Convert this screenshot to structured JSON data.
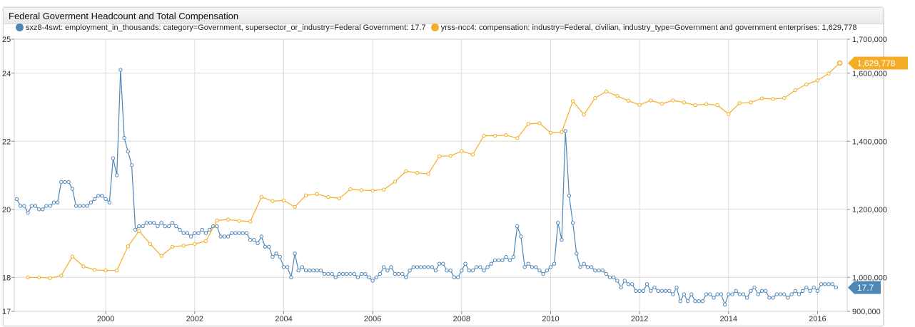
{
  "widget": {
    "title": "Federal Goverment Headcount and Total Compensation"
  },
  "chart_data": {
    "type": "line",
    "title": "Federal Goverment Headcount and Total Compensation",
    "x_ticks": [
      "2000",
      "2002",
      "2004",
      "2006",
      "2008",
      "2010",
      "2012",
      "2014",
      "2016"
    ],
    "y_left": {
      "range": [
        17,
        25
      ],
      "ticks": [
        "17",
        "18",
        "20",
        "22",
        "24",
        "25"
      ]
    },
    "y_right": {
      "range": [
        900000,
        1700000
      ],
      "ticks": [
        "900,000",
        "1,000,000",
        "1,200,000",
        "1,400,000",
        "1,600,000",
        "1,700,000"
      ]
    },
    "grid": true,
    "legend_position": "top-left",
    "series": [
      {
        "name": "sxz8-4swt: employment_in_thousands: category=Government, supersector_or_industry=Federal Government: 17.7",
        "axis": "left",
        "color": "#4e86b8",
        "last_label": "17.7",
        "frequency": "monthly",
        "start": "1998-01",
        "values": [
          20.3,
          20.1,
          20.1,
          19.9,
          20.1,
          20.1,
          20.0,
          20.0,
          20.1,
          20.1,
          20.2,
          20.2,
          20.8,
          20.8,
          20.8,
          20.6,
          20.1,
          20.1,
          20.1,
          20.1,
          20.2,
          20.3,
          20.4,
          20.4,
          20.3,
          20.2,
          21.5,
          21.0,
          24.1,
          22.1,
          21.7,
          21.3,
          19.4,
          19.5,
          19.5,
          19.6,
          19.6,
          19.6,
          19.5,
          19.6,
          19.5,
          19.5,
          19.6,
          19.5,
          19.4,
          19.3,
          19.3,
          19.2,
          19.3,
          19.3,
          19.4,
          19.3,
          19.4,
          19.5,
          19.5,
          19.2,
          19.2,
          19.2,
          19.3,
          19.3,
          19.3,
          19.3,
          19.3,
          19.1,
          19.1,
          19.0,
          19.2,
          18.9,
          18.9,
          18.6,
          18.7,
          18.6,
          18.3,
          18.3,
          18.0,
          18.7,
          18.2,
          18.3,
          18.2,
          18.2,
          18.2,
          18.2,
          18.2,
          18.1,
          18.1,
          18.1,
          18.0,
          18.1,
          18.1,
          18.1,
          18.1,
          18.1,
          18.0,
          18.1,
          18.1,
          18.0,
          17.9,
          18.0,
          18.1,
          18.3,
          18.2,
          18.3,
          18.1,
          18.1,
          18.1,
          18.0,
          18.2,
          18.3,
          18.3,
          18.3,
          18.3,
          18.3,
          18.3,
          18.2,
          18.4,
          18.4,
          18.2,
          18.2,
          18.0,
          18.0,
          18.2,
          18.4,
          18.2,
          18.2,
          18.3,
          18.3,
          18.2,
          18.3,
          18.4,
          18.5,
          18.5,
          18.5,
          18.6,
          18.5,
          18.6,
          19.5,
          19.2,
          18.3,
          18.4,
          18.3,
          18.3,
          18.2,
          18.1,
          18.2,
          18.3,
          18.4,
          19.6,
          19.1,
          22.3,
          20.4,
          19.6,
          18.7,
          18.3,
          18.4,
          18.3,
          18.3,
          18.2,
          18.2,
          18.2,
          18.1,
          18.0,
          18.0,
          17.9,
          17.7,
          17.9,
          17.8,
          17.8,
          17.6,
          17.6,
          17.6,
          17.8,
          17.6,
          17.7,
          17.6,
          17.6,
          17.6,
          17.6,
          17.5,
          17.7,
          17.3,
          17.5,
          17.3,
          17.5,
          17.3,
          17.3,
          17.3,
          17.5,
          17.5,
          17.4,
          17.5,
          17.5,
          17.2,
          17.5,
          17.5,
          17.6,
          17.5,
          17.5,
          17.4,
          17.6,
          17.7,
          17.5,
          17.6,
          17.6,
          17.4,
          17.4,
          17.5,
          17.5,
          17.5,
          17.4,
          17.5,
          17.6,
          17.5,
          17.6,
          17.7,
          17.6,
          17.7,
          17.6,
          17.8,
          17.8,
          17.8,
          17.8,
          17.7
        ]
      },
      {
        "name": "yrss-ncc4: compensation: industry=Federal, civilian, industry_type=Government and government enterprises: 1,629,778",
        "axis": "right",
        "color": "#f5ad25",
        "last_label": "1,629,778",
        "frequency": "quarterly",
        "start": "1998-Q2",
        "values": [
          1000000,
          1000000,
          998000,
          1005000,
          1061000,
          1032000,
          1022000,
          1020000,
          1020000,
          1091000,
          1136000,
          1098000,
          1063000,
          1090000,
          1093000,
          1098000,
          1106000,
          1167000,
          1170000,
          1166000,
          1164000,
          1236000,
          1224000,
          1226000,
          1207000,
          1241000,
          1245000,
          1236000,
          1232000,
          1259000,
          1256000,
          1255000,
          1258000,
          1281000,
          1312000,
          1307000,
          1304000,
          1356000,
          1357000,
          1371000,
          1361000,
          1416000,
          1416000,
          1418000,
          1409000,
          1451000,
          1453000,
          1425000,
          1427000,
          1518000,
          1478000,
          1527000,
          1546000,
          1533000,
          1519000,
          1507000,
          1520000,
          1510000,
          1520000,
          1514000,
          1506000,
          1509000,
          1506000,
          1480000,
          1512000,
          1514000,
          1526000,
          1524000,
          1527000,
          1550000,
          1567000,
          1579000,
          1599000,
          1629778
        ]
      }
    ]
  }
}
